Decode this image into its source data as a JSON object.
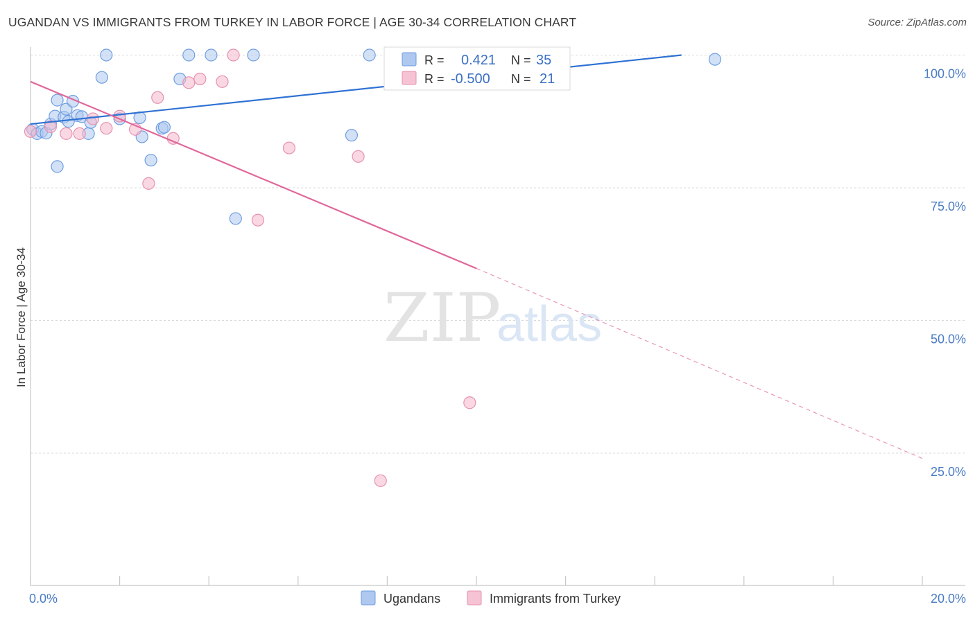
{
  "title": "UGANDAN VS IMMIGRANTS FROM TURKEY IN LABOR FORCE | AGE 30-34 CORRELATION CHART",
  "source": "Source: ZipAtlas.com",
  "watermark": {
    "zip": "ZIP",
    "atlas": "atlas"
  },
  "colors": {
    "blue": "#2f72d4",
    "blue_fill": "#aec8f0",
    "pink": "#e0689a",
    "pink_fill": "#f5b8cc",
    "axis_label": "#4a7cc4"
  },
  "stats": {
    "ugandans": {
      "r_label": "R =",
      "r_value": "0.421",
      "n_label": "N =",
      "n_value": "35"
    },
    "turkey": {
      "r_label": "R =",
      "r_value": "-0.500",
      "n_label": "N =",
      "n_value": "21"
    }
  },
  "chart_data": {
    "type": "scatter",
    "title": "UGANDAN VS IMMIGRANTS FROM TURKEY IN LABOR FORCE | AGE 30-34 CORRELATION CHART",
    "xlabel": "",
    "ylabel": "In Labor Force | Age 30-34",
    "xlim": [
      0,
      20
    ],
    "ylim": [
      2,
      102
    ],
    "x_tick_labels": [
      "0.0%",
      "20.0%"
    ],
    "y_ticks": [
      {
        "value": 25,
        "label": "25.0%"
      },
      {
        "value": 50,
        "label": "50.0%"
      },
      {
        "value": 75,
        "label": "75.0%"
      },
      {
        "value": 100,
        "label": "100.0%"
      }
    ],
    "legend": [
      "Ugandans",
      "Immigrants from Turkey"
    ],
    "legend_position": "bottom-center",
    "series": [
      {
        "name": "Ugandans",
        "color": "#2f72d4",
        "points": [
          [
            0.05,
            86.0
          ],
          [
            0.15,
            85.2
          ],
          [
            0.25,
            85.6
          ],
          [
            0.35,
            85.3
          ],
          [
            0.45,
            87.0
          ],
          [
            0.55,
            88.5
          ],
          [
            0.6,
            79.0
          ],
          [
            0.6,
            91.5
          ],
          [
            0.75,
            88.3
          ],
          [
            0.85,
            87.5
          ],
          [
            0.8,
            89.8
          ],
          [
            0.95,
            91.3
          ],
          [
            1.05,
            88.6
          ],
          [
            1.15,
            88.4
          ],
          [
            1.3,
            85.2
          ],
          [
            1.35,
            87.3
          ],
          [
            1.6,
            95.8
          ],
          [
            1.7,
            100.0
          ],
          [
            2.0,
            88.0
          ],
          [
            2.45,
            88.2
          ],
          [
            2.5,
            84.6
          ],
          [
            2.7,
            80.2
          ],
          [
            2.95,
            86.2
          ],
          [
            3.0,
            86.4
          ],
          [
            3.35,
            95.5
          ],
          [
            3.55,
            100.0
          ],
          [
            4.05,
            100.0
          ],
          [
            4.6,
            69.2
          ],
          [
            5.0,
            100.0
          ],
          [
            7.2,
            84.9
          ],
          [
            7.6,
            100.0
          ],
          [
            15.35,
            99.2
          ]
        ],
        "trend": {
          "x0": 0.0,
          "y0": 87.0,
          "x1": 14.6,
          "y1": 100.0,
          "dashed_to_x": null
        }
      },
      {
        "name": "Immigrants from Turkey",
        "color": "#e0689a",
        "points": [
          [
            0.0,
            85.6
          ],
          [
            0.45,
            86.5
          ],
          [
            0.8,
            85.2
          ],
          [
            1.1,
            85.2
          ],
          [
            1.4,
            88.0
          ],
          [
            1.7,
            86.2
          ],
          [
            2.0,
            88.5
          ],
          [
            2.35,
            86.0
          ],
          [
            2.65,
            75.8
          ],
          [
            2.85,
            92.0
          ],
          [
            3.2,
            84.3
          ],
          [
            3.55,
            94.8
          ],
          [
            3.8,
            95.5
          ],
          [
            4.3,
            95.0
          ],
          [
            4.55,
            100.0
          ],
          [
            5.1,
            68.9
          ],
          [
            5.8,
            82.5
          ],
          [
            7.35,
            80.9
          ],
          [
            7.85,
            19.8
          ],
          [
            9.85,
            34.5
          ]
        ],
        "trend": {
          "x0": 0.0,
          "y0": 95.0,
          "x1": 10.0,
          "y1": 59.8,
          "dashed_to_x": 20.0,
          "dashed_end_y": 24.0
        }
      }
    ]
  }
}
